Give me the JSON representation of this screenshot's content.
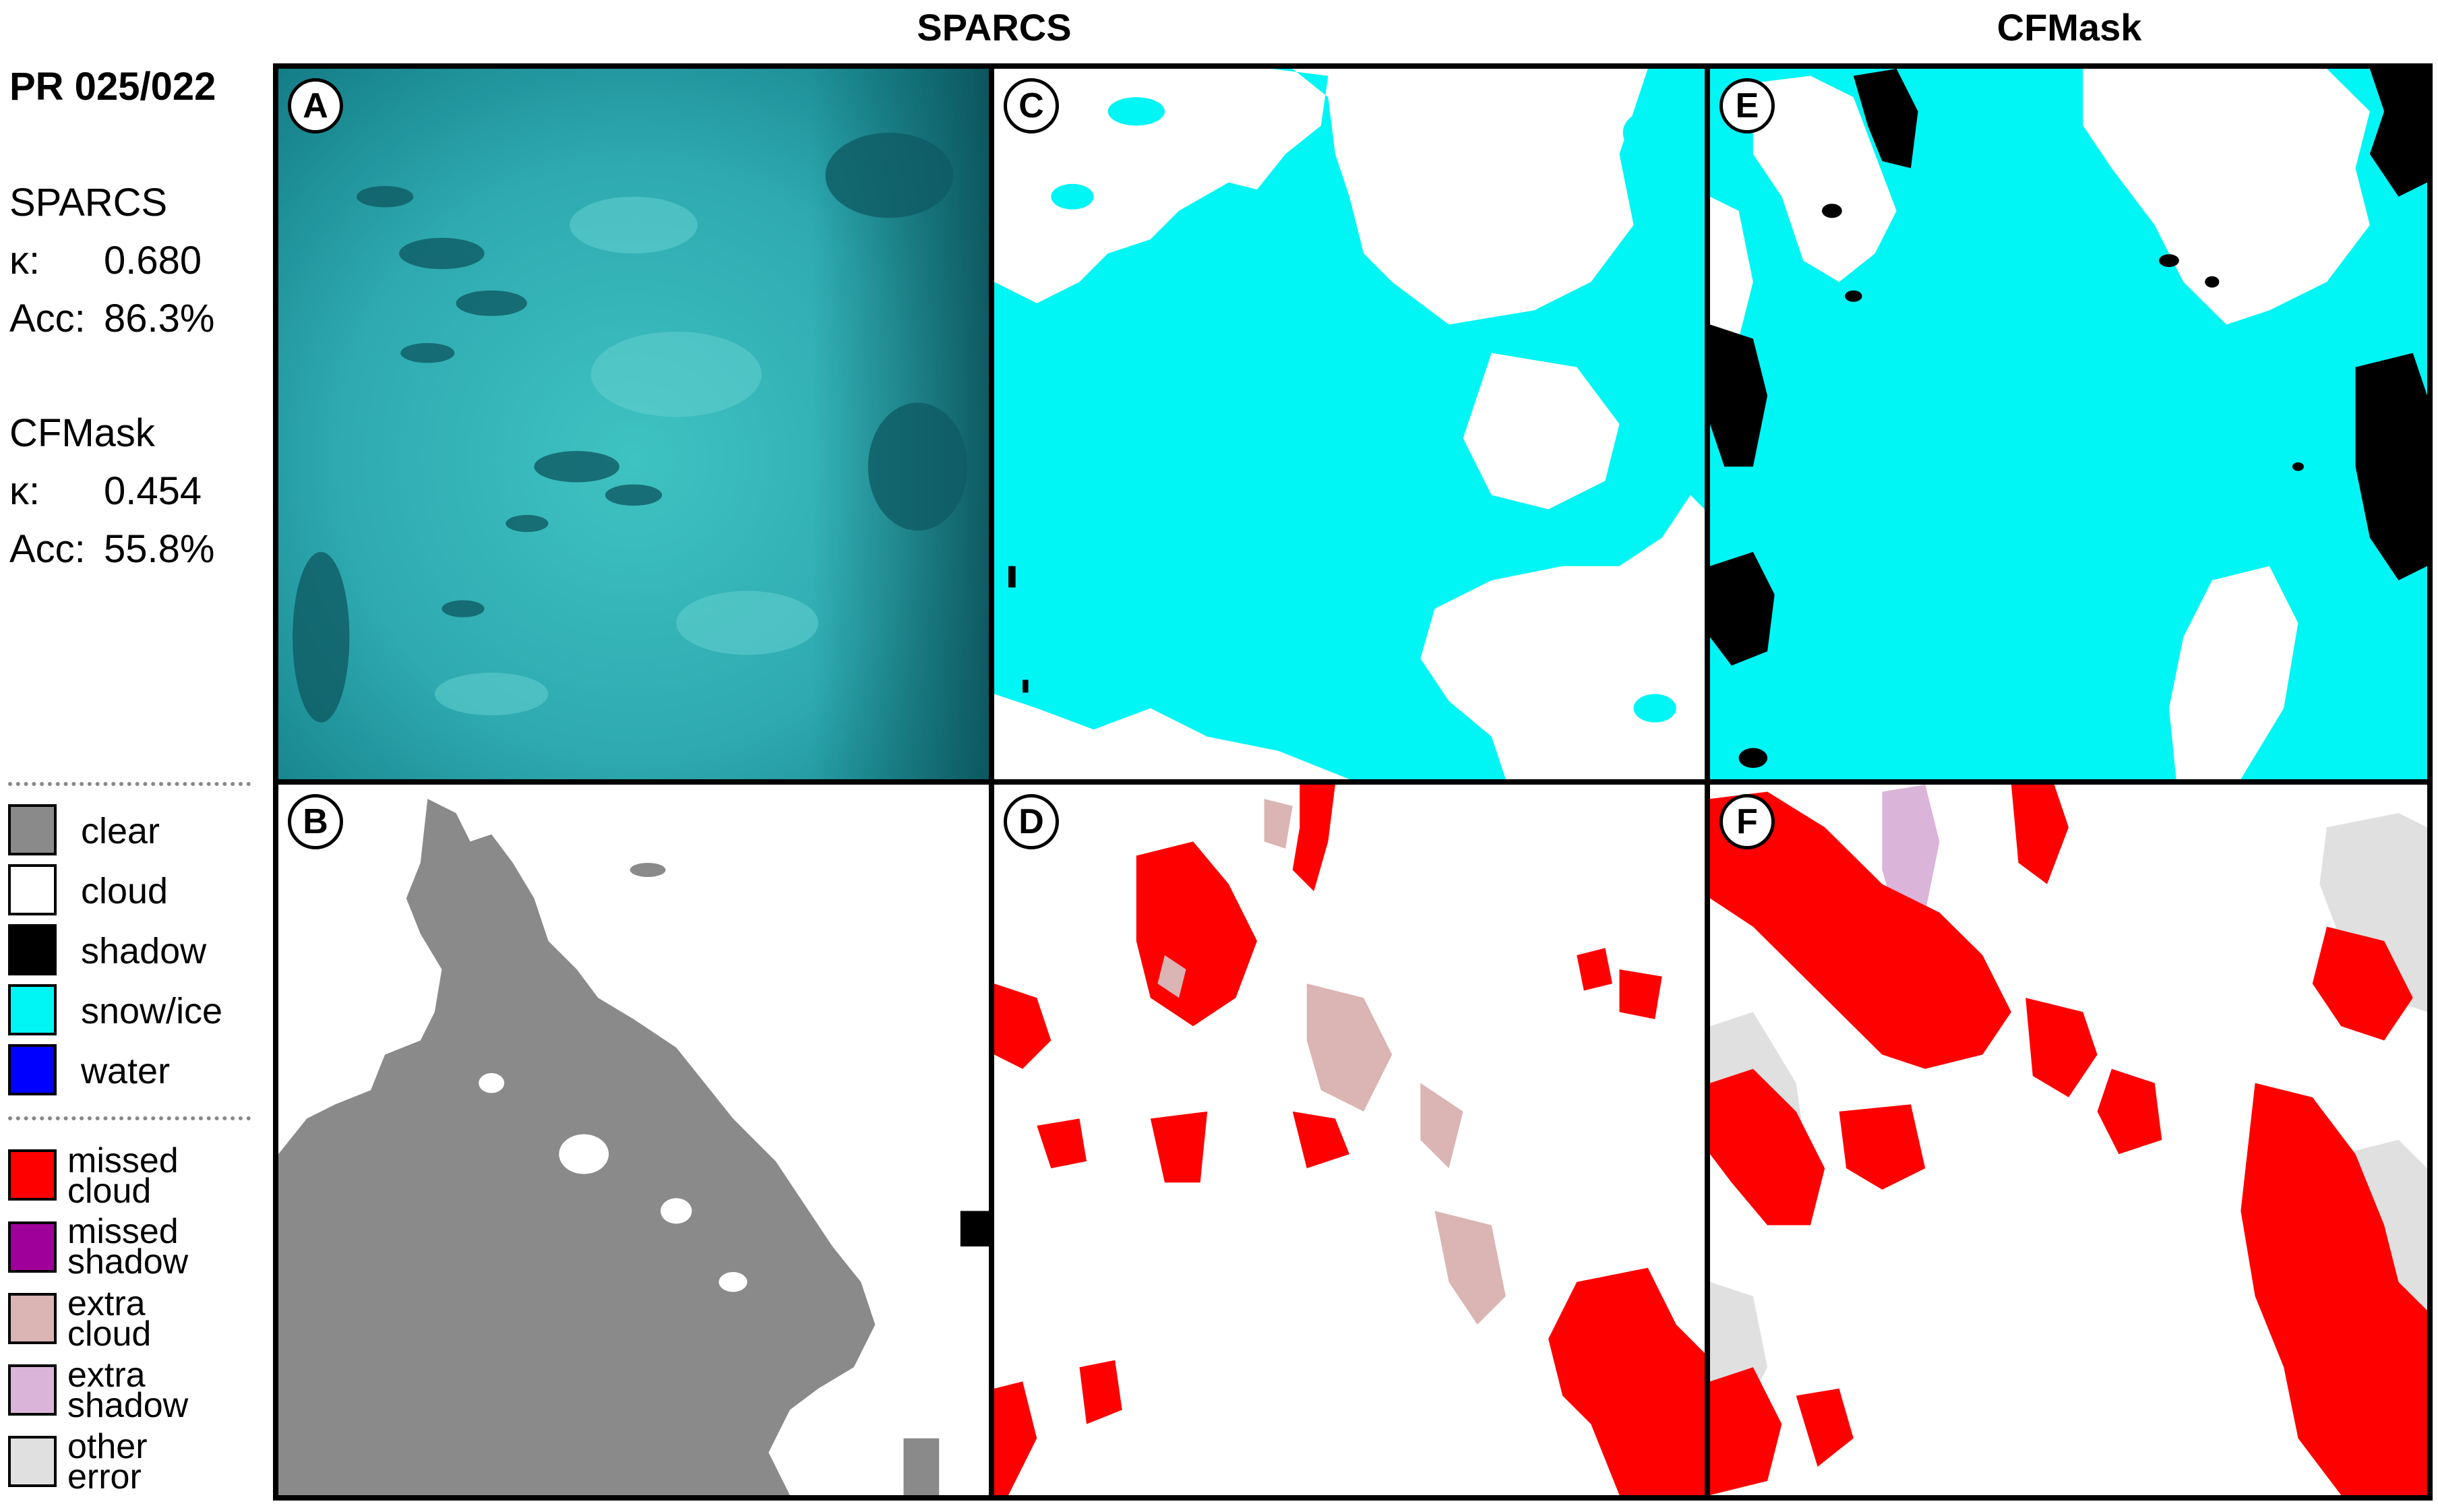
{
  "header": {
    "path_row": "PR 025/022",
    "col_sparcs": "SPARCS",
    "col_cfmask": "CFMask"
  },
  "stats": {
    "sparcs": {
      "name": "SPARCS",
      "kappa_label": "κ:",
      "kappa": "0.680",
      "acc_label": "Acc:",
      "acc": "86.3%"
    },
    "cfmask": {
      "name": "CFMask",
      "kappa_label": "κ:",
      "kappa": "0.454",
      "acc_label": "Acc:",
      "acc": "55.8%"
    }
  },
  "legend_classes": [
    {
      "label": "clear",
      "color": "#8a8a8a"
    },
    {
      "label": "cloud",
      "color": "#ffffff"
    },
    {
      "label": "shadow",
      "color": "#000000"
    },
    {
      "label": "snow/ice",
      "color": "#00f5f5"
    },
    {
      "label": "water",
      "color": "#0000ff"
    }
  ],
  "legend_errors": [
    {
      "line1": "missed",
      "line2": "cloud",
      "color": "#ff0000"
    },
    {
      "line1": "missed",
      "line2": "shadow",
      "color": "#a0009a"
    },
    {
      "line1": "extra",
      "line2": "cloud",
      "color": "#dbb4b4"
    },
    {
      "line1": "extra",
      "line2": "shadow",
      "color": "#dbb4d9"
    },
    {
      "line1": "other",
      "line2": "error",
      "color": "#e0e0e0"
    }
  ],
  "panels": {
    "a": {
      "letter": "A",
      "image": "satellite-scene"
    },
    "b": {
      "letter": "B",
      "image": "reference-mask"
    },
    "c": {
      "letter": "C",
      "image": "sparcs-classification"
    },
    "d": {
      "letter": "D",
      "image": "sparcs-error-map"
    },
    "e": {
      "letter": "E",
      "image": "cfmask-classification"
    },
    "f": {
      "letter": "F",
      "image": "cfmask-error-map"
    }
  }
}
